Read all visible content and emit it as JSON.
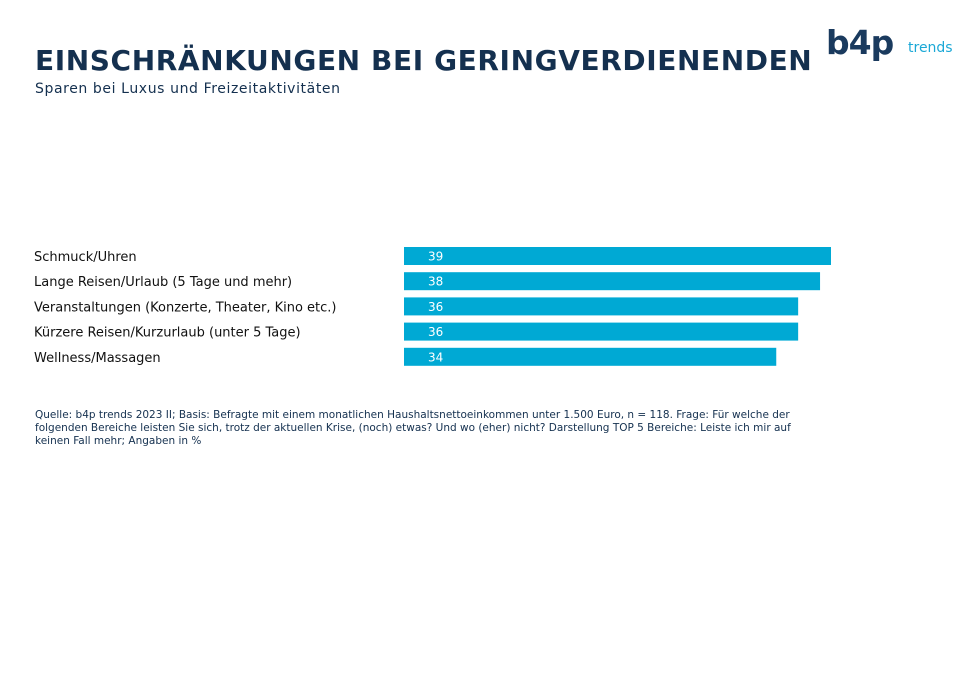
{
  "header": {
    "title": "EINSCHRÄNKUNGEN BEI GERINGVERDIENENDEN",
    "subtitle": "Sparen bei Luxus und Freizeitaktivitäten"
  },
  "logo": {
    "mark": "b4p",
    "text": "trends"
  },
  "colors": {
    "bar": "#00a9d4",
    "title": "#14304f",
    "bar_label": "#ffffff"
  },
  "chart_data": {
    "type": "bar",
    "orientation": "horizontal",
    "categories": [
      "Schmuck/Uhren",
      "Lange Reisen/Urlaub (5 Tage und mehr)",
      "Veranstaltungen (Konzerte, Theater, Kino etc.)",
      "Kürzere Reisen/Kurzurlaub (unter 5 Tage)",
      "Wellness/Massagen"
    ],
    "values": [
      39,
      38,
      36,
      36,
      34
    ],
    "xlim": [
      0,
      39
    ],
    "grid": false,
    "legend": "none"
  },
  "footer": {
    "source": "Quelle: b4p trends 2023 II; Basis: Befragte mit einem monatlichen Haushaltsnettoeinkommen unter 1.500 Euro, n = 118. Frage: Für welche der folgenden Bereiche leisten Sie sich, trotz der aktuellen Krise, (noch) etwas? Und wo (eher) nicht? Darstellung TOP 5 Bereiche: Leiste ich mir auf keinen Fall mehr; Angaben in %"
  }
}
